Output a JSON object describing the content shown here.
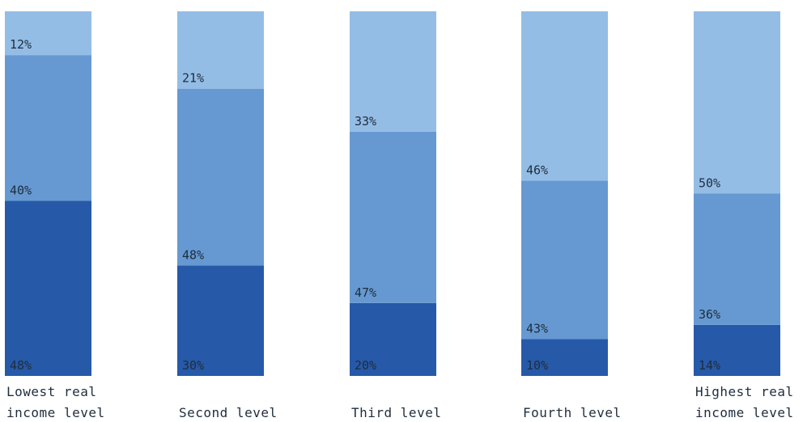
{
  "chart_data": {
    "type": "bar",
    "stacked": true,
    "normalized_percent": true,
    "categories": [
      [
        "Lowest real",
        "income level"
      ],
      [
        "Second level"
      ],
      [
        "Third level"
      ],
      [
        "Fourth level"
      ],
      [
        "Highest real",
        "income level"
      ]
    ],
    "series": [
      {
        "values": [
          48,
          30,
          20,
          10,
          14
        ],
        "color": "#2659a8"
      },
      {
        "values": [
          40,
          48,
          47,
          43,
          36
        ],
        "color": "#6699d1"
      },
      {
        "values": [
          12,
          21,
          33,
          46,
          50
        ],
        "color": "#94bde6"
      }
    ],
    "labels": [
      [
        "48%",
        "30%",
        "20%",
        "10%",
        "14%"
      ],
      [
        "40%",
        "48%",
        "47%",
        "43%",
        "36%"
      ],
      [
        "12%",
        "21%",
        "33%",
        "46%",
        "50%"
      ]
    ],
    "ylim": [
      0,
      100
    ],
    "title": "",
    "xlabel": "",
    "ylabel": ""
  }
}
